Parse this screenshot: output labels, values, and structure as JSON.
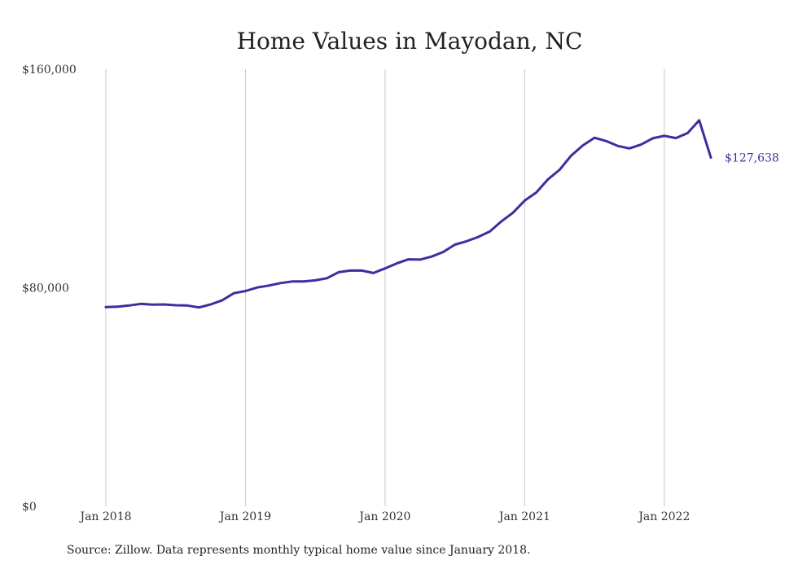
{
  "chart_data": {
    "type": "line",
    "title": "Home Values in Mayodan, NC",
    "xlabel": "",
    "ylabel": "",
    "ylim": [
      0,
      160000
    ],
    "yticks": [
      0,
      80000,
      160000
    ],
    "ytick_labels": [
      "$0",
      "$80,000",
      "$160,000"
    ],
    "xlim": [
      "2018-01",
      "2022-05"
    ],
    "xticks": [
      "2018-01",
      "2019-01",
      "2020-01",
      "2021-01",
      "2022-01"
    ],
    "xtick_labels": [
      "Jan 2018",
      "Jan 2019",
      "Jan 2020",
      "Jan 2021",
      "Jan 2022"
    ],
    "grid": "vertical",
    "line_color": "#3b2f9e",
    "end_label": "$127,638",
    "series": [
      {
        "x": [
          "2018-01",
          "2018-02",
          "2018-03",
          "2018-04",
          "2018-05",
          "2018-06",
          "2018-07",
          "2018-08",
          "2018-09",
          "2018-10",
          "2018-11",
          "2018-12",
          "2019-01",
          "2019-02",
          "2019-03",
          "2019-04",
          "2019-05",
          "2019-06",
          "2019-07",
          "2019-08",
          "2019-09",
          "2019-10",
          "2019-11",
          "2019-12",
          "2020-01",
          "2020-02",
          "2020-03",
          "2020-04",
          "2020-05",
          "2020-06",
          "2020-07",
          "2020-08",
          "2020-09",
          "2020-10",
          "2020-11",
          "2020-12",
          "2021-01",
          "2021-02",
          "2021-03",
          "2021-04",
          "2021-05",
          "2021-06",
          "2021-07",
          "2021-08",
          "2021-09",
          "2021-10",
          "2021-11",
          "2021-12",
          "2022-01",
          "2022-02",
          "2022-03",
          "2022-04",
          "2022-05"
        ],
        "values": [
          72900,
          73100,
          73500,
          74100,
          73800,
          73900,
          73600,
          73500,
          72800,
          73900,
          75400,
          78000,
          78800,
          80100,
          80800,
          81700,
          82300,
          82300,
          82700,
          83500,
          85700,
          86300,
          86300,
          85400,
          87100,
          88900,
          90400,
          90300,
          91400,
          93100,
          95800,
          97000,
          98600,
          100600,
          104300,
          107500,
          111900,
          114900,
          119700,
          123200,
          128400,
          132100,
          134900,
          133700,
          131900,
          131000,
          132400,
          134700,
          135600,
          134800,
          136600,
          141300,
          127638
        ]
      }
    ]
  },
  "source_note": "Source: Zillow. Data represents monthly typical home value since January 2018."
}
